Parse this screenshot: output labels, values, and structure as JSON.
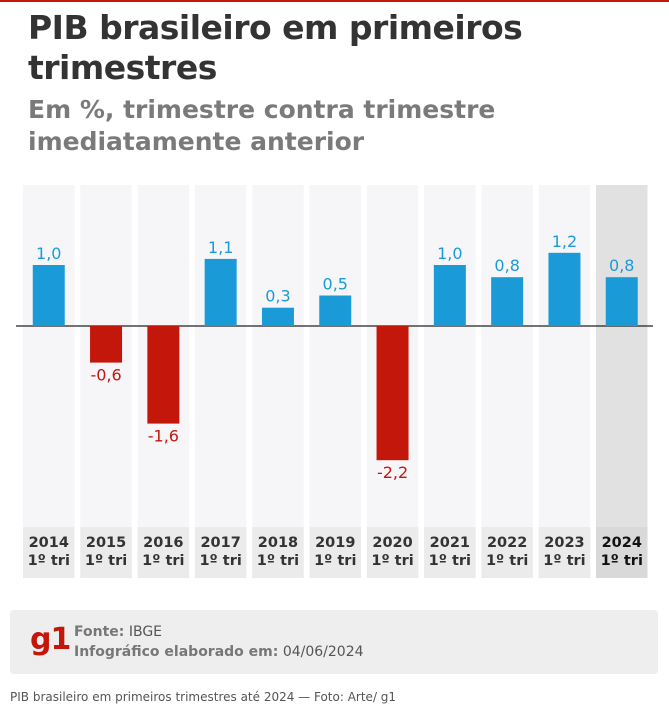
{
  "title": "PIB brasileiro em primeiros trimestres",
  "subtitle": "Em %, trimestre contra trimestre imediatamente anterior",
  "colors": {
    "positive": "#1a9bd7",
    "negative": "#c4170c",
    "highlight_bg": "#e1e1e1",
    "column_bg": "#f6f6f9"
  },
  "chart_data": {
    "type": "bar",
    "title": "PIB brasileiro em primeiros trimestres",
    "subtitle": "Em %, trimestre contra trimestre imediatamente anterior",
    "categories": [
      "2014",
      "2015",
      "2016",
      "2017",
      "2018",
      "2019",
      "2020",
      "2021",
      "2022",
      "2023",
      "2024"
    ],
    "category_sublabel": "1º tri",
    "values": [
      1.0,
      -0.6,
      -1.6,
      1.1,
      0.3,
      0.5,
      -2.2,
      1.0,
      0.8,
      1.2,
      0.8
    ],
    "value_labels": [
      "1,0",
      "-0,6",
      "-1,6",
      "1,1",
      "0,3",
      "0,5",
      "-2,2",
      "1,0",
      "0,8",
      "1,2",
      "0,8"
    ],
    "highlight_category": "2024",
    "ylim": [
      -2.7,
      1.9
    ]
  },
  "footer": {
    "logo": "g1",
    "source_label": "Fonte:",
    "source_value": "IBGE",
    "made_label": "Infográfico elaborado em:",
    "made_value": "04/06/2024"
  },
  "caption": "PIB brasileiro em primeiros trimestres até 2024 — Foto: Arte/ g1"
}
